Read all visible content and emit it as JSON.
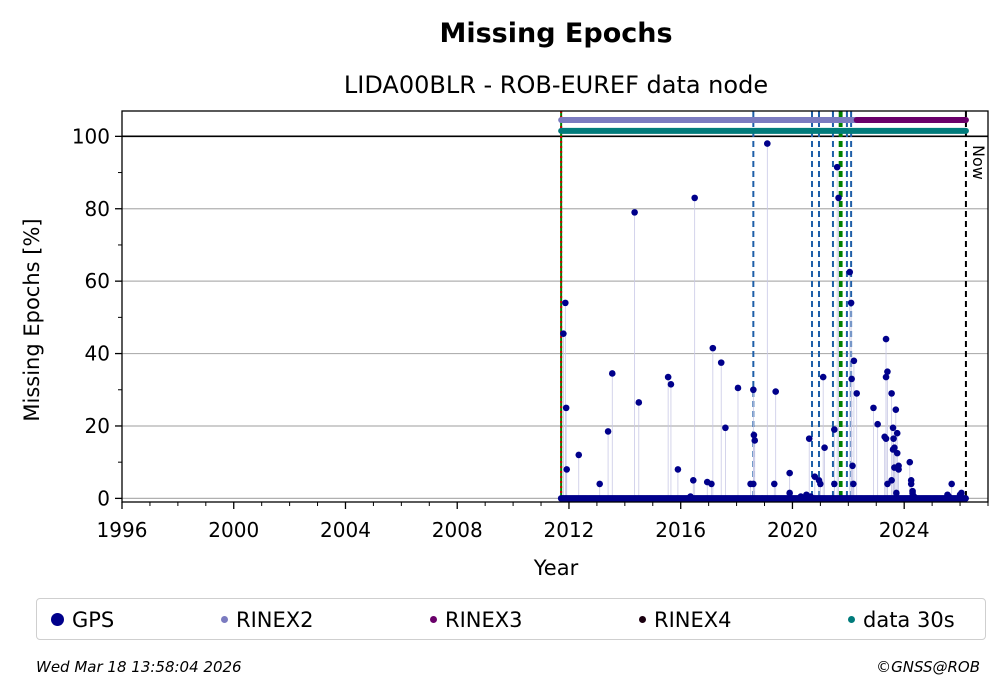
{
  "title": "Missing Epochs",
  "subtitle": "LIDA00BLR - ROB-EUREF data node",
  "footer": {
    "timestamp": "Wed Mar 18 13:58:04 2026",
    "copyright": "©GNSS@ROB"
  },
  "legend": [
    {
      "label": "GPS",
      "color": "#00008b",
      "size": 13
    },
    {
      "label": "RINEX2",
      "color": "#7b7bc0",
      "size": 7
    },
    {
      "label": "RINEX3",
      "color": "#6a006a",
      "size": 7
    },
    {
      "label": "RINEX4",
      "color": "#1a0010",
      "size": 7
    },
    {
      "label": "data 30s",
      "color": "#007b7b",
      "size": 7
    }
  ],
  "chart_data": {
    "type": "scatter",
    "xlabel": "Year",
    "ylabel": "Missing Epochs [%]",
    "xlim": [
      1996,
      2027.0
    ],
    "ylim": [
      -1,
      107
    ],
    "xticks": [
      1996,
      2000,
      2004,
      2008,
      2012,
      2016,
      2020,
      2024
    ],
    "yticks": [
      0,
      20,
      40,
      60,
      80,
      100
    ],
    "grid": "horizontal",
    "legend_position": "bottom",
    "now_label": "Now",
    "now_x": 2026.21,
    "start_x": 2011.72,
    "coverage_bars": [
      {
        "name": "RINEX2",
        "from": 2011.72,
        "to": 2022.3,
        "y": 104.5,
        "color": "#7b7bc0"
      },
      {
        "name": "RINEX3",
        "from": 2022.3,
        "to": 2026.21,
        "y": 104.5,
        "color": "#6a006a"
      },
      {
        "name": "data 30s",
        "from": 2011.72,
        "to": 2026.21,
        "y": 101.5,
        "color": "#007b7b"
      }
    ],
    "event_lines_blue": [
      2018.6,
      2020.7,
      2020.95,
      2021.45,
      2021.95,
      2022.1
    ],
    "event_lines_green": [
      2021.7,
      2021.75
    ],
    "series": [
      {
        "name": "GPS",
        "color": "#00008b",
        "x": [
          2011.8,
          2011.87,
          2011.9,
          2011.92,
          2012.35,
          2013.1,
          2013.4,
          2013.55,
          2014.35,
          2014.5,
          2015.55,
          2015.65,
          2015.9,
          2016.35,
          2016.45,
          2016.5,
          2016.95,
          2017.1,
          2017.15,
          2017.45,
          2017.6,
          2018.05,
          2018.5,
          2018.6,
          2018.6,
          2018.62,
          2018.65,
          2019.1,
          2019.35,
          2019.4,
          2019.9,
          2019.9,
          2020.3,
          2020.5,
          2020.6,
          2020.65,
          2020.8,
          2020.95,
          2021.0,
          2021.1,
          2021.15,
          2021.5,
          2021.5,
          2021.6,
          2021.65,
          2022.05,
          2022.1,
          2022.12,
          2022.15,
          2022.18,
          2022.2,
          2022.3,
          2022.9,
          2023.05,
          2023.3,
          2023.35,
          2023.35,
          2023.35,
          2023.4,
          2023.4,
          2023.55,
          2023.55,
          2023.6,
          2023.6,
          2023.62,
          2023.65,
          2023.65,
          2023.7,
          2023.72,
          2023.75,
          2023.75,
          2023.8,
          2023.8,
          2024.2,
          2024.25,
          2024.25,
          2024.3,
          2024.3,
          2024.3,
          2024.35,
          2025.55,
          2025.6,
          2025.7,
          2026.0,
          2026.05
        ],
        "y": [
          45.5,
          54,
          25,
          8,
          12,
          4,
          18.5,
          34.5,
          79,
          26.5,
          33.5,
          31.5,
          8,
          0.5,
          5,
          83,
          4.5,
          4,
          41.5,
          37.5,
          19.5,
          30.5,
          4,
          4,
          30,
          17.5,
          16,
          98,
          4,
          29.5,
          7,
          1.5,
          0.5,
          1,
          16.5,
          0.5,
          6,
          5,
          4,
          33.5,
          14,
          19,
          4,
          91.5,
          83,
          62.5,
          54,
          33,
          9,
          4,
          38,
          29,
          25,
          20.5,
          17,
          16.5,
          44,
          33.5,
          35,
          4,
          5,
          29,
          19.5,
          13.5,
          16.5,
          8.5,
          14,
          24.5,
          1.5,
          18,
          12.5,
          9,
          8,
          10,
          5,
          4,
          1.5,
          0.5,
          2,
          0.5,
          1,
          0.5,
          4,
          1,
          1.5
        ]
      }
    ]
  }
}
